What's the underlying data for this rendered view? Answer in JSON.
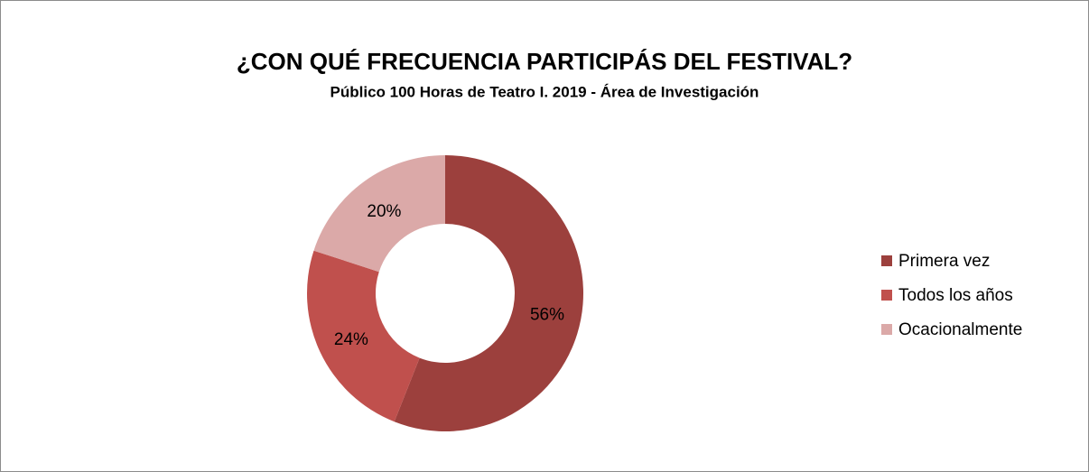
{
  "chart_data": {
    "type": "donut",
    "title": "¿CON QUÉ FRECUENCIA PARTICIPÁS DEL FESTIVAL?",
    "subtitle": "Público 100 Horas de Teatro I. 2019 - Área de Investigación",
    "categories": [
      "Primera vez",
      "Todos los años",
      "Ocacionalmente"
    ],
    "values": [
      56,
      24,
      20
    ],
    "value_labels": [
      "56%",
      "24%",
      "20%"
    ],
    "colors": [
      "#9c403d",
      "#c0504d",
      "#dba9a8"
    ],
    "legend": "right"
  }
}
